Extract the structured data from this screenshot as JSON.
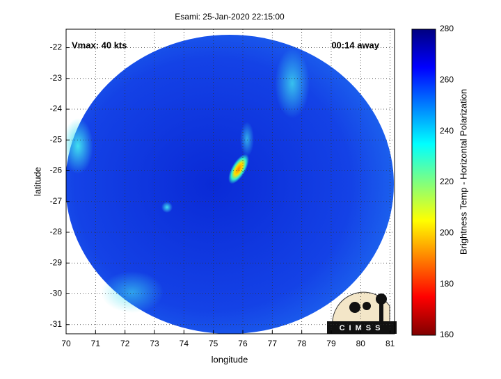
{
  "chart_data": {
    "type": "image",
    "title": "Esami: 25-Jan-2020 22:15:00",
    "annotations": [
      "Vmax: 40 kts",
      "00:14 away"
    ],
    "xlabel": "longitude",
    "ylabel": "latitude",
    "xlim": [
      70,
      81.15
    ],
    "ylim": [
      -31.3,
      -21.4
    ],
    "xticks": [
      70,
      71,
      72,
      73,
      74,
      75,
      76,
      77,
      78,
      79,
      80,
      81
    ],
    "yticks": [
      -31,
      -30,
      -29,
      -28,
      -27,
      -26,
      -25,
      -24,
      -23,
      -22
    ],
    "grid": true,
    "colorbar": {
      "label": "Brightness Temp - Horizontal Polarization",
      "clim": [
        160,
        280
      ],
      "ticks": [
        160,
        180,
        200,
        220,
        240,
        260,
        280
      ]
    },
    "logo": "CIMSS"
  }
}
